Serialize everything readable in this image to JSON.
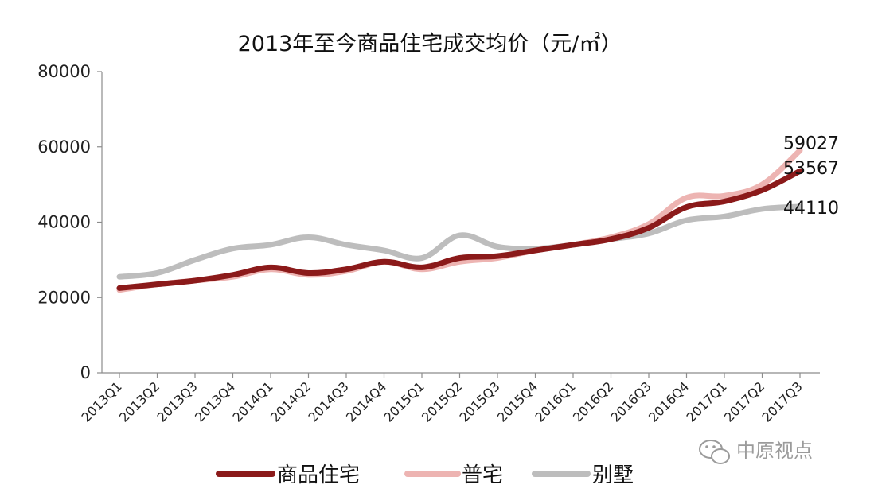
{
  "chart_data": {
    "type": "line",
    "title": "2013年至今商品住宅成交均价（元/㎡）",
    "ylim": [
      0,
      80000
    ],
    "yticks": [
      0,
      20000,
      40000,
      60000,
      80000
    ],
    "categories": [
      "2013Q1",
      "2013Q2",
      "2013Q3",
      "2013Q4",
      "2014Q1",
      "2014Q2",
      "2014Q3",
      "2014Q4",
      "2015Q1",
      "2015Q2",
      "2015Q3",
      "2015Q4",
      "2016Q1",
      "2016Q2",
      "2016Q3",
      "2016Q4",
      "2017Q1",
      "2017Q2",
      "2017Q3"
    ],
    "series": [
      {
        "name": "别墅",
        "color": "#bdbdbd",
        "values": [
          25500,
          26500,
          30000,
          33000,
          34000,
          36000,
          34000,
          32500,
          30500,
          36500,
          33500,
          33000,
          34000,
          35500,
          37000,
          40500,
          41500,
          43500,
          44110
        ],
        "end_label": "44110"
      },
      {
        "name": "普宅",
        "color": "#edb4b2",
        "values": [
          22000,
          23500,
          24500,
          25500,
          27500,
          26000,
          27000,
          29500,
          27500,
          29500,
          30500,
          32500,
          34000,
          36000,
          39500,
          46500,
          47000,
          50000,
          59027
        ],
        "end_label": "59027"
      },
      {
        "name": "商品住宅",
        "color": "#8b1a1a",
        "values": [
          22500,
          23500,
          24500,
          26000,
          28000,
          26500,
          27500,
          29500,
          28000,
          30500,
          31000,
          32500,
          34000,
          35500,
          38500,
          44000,
          45500,
          48500,
          53567
        ],
        "end_label": "53567"
      }
    ],
    "legend": {
      "position": "bottom",
      "items": [
        "商品住宅",
        "普宅",
        "别墅"
      ]
    },
    "grid": false
  },
  "watermark": {
    "text": "中原视点",
    "icon": "wechat-icon"
  }
}
